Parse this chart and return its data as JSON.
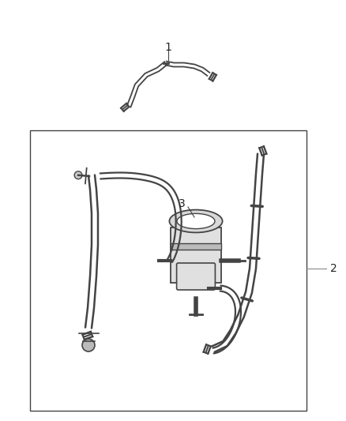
{
  "bg_color": "#ffffff",
  "line_color": "#444444",
  "label_color": "#222222",
  "fig_width": 4.38,
  "fig_height": 5.33,
  "dpi": 100,
  "part1_label": "1",
  "part2_label": "2",
  "part3_label": "3"
}
